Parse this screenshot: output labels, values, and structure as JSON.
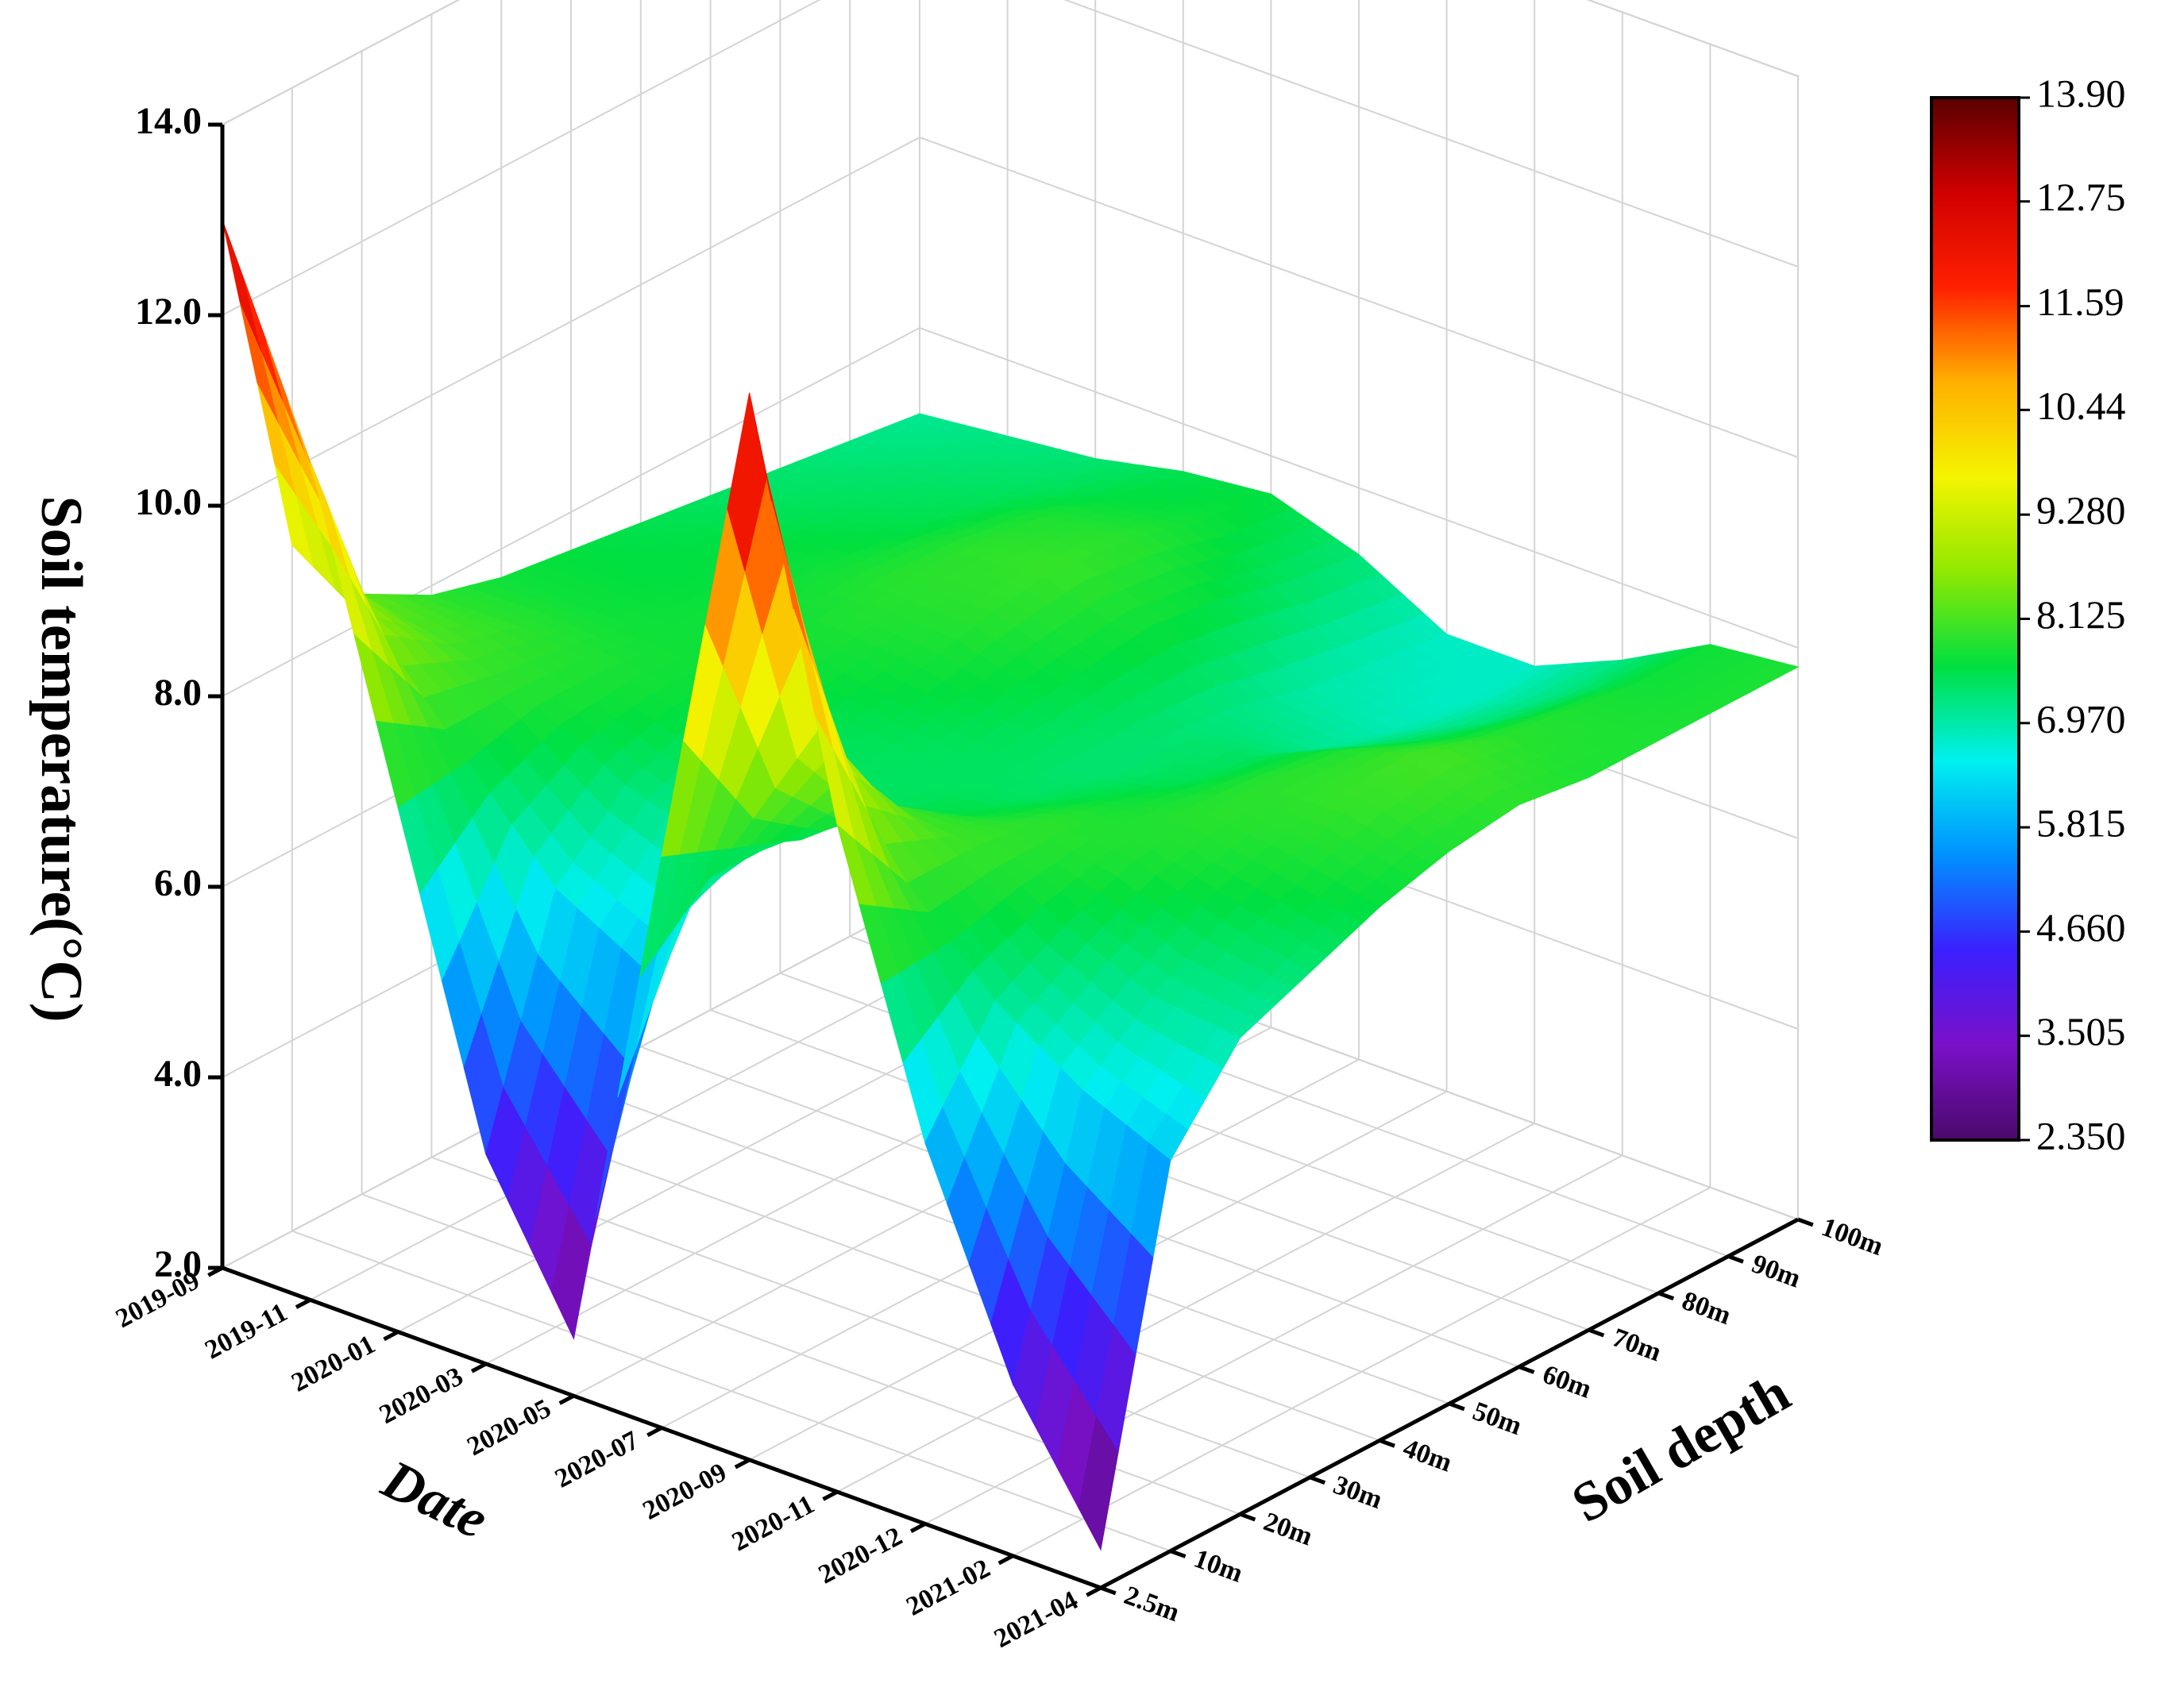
{
  "chart_data": {
    "type": "surface",
    "z_label": "Soil temperature(°C)",
    "x_label": "Date",
    "y_label": "Soil depth",
    "x_categories": [
      "2019-09",
      "2019-11",
      "2020-01",
      "2020-03",
      "2020-05",
      "2020-07",
      "2020-09",
      "2020-11",
      "2020-12",
      "2021-02",
      "2021-04"
    ],
    "y_categories": [
      "2.5m",
      "10m",
      "20m",
      "30m",
      "40m",
      "50m",
      "60m",
      "70m",
      "80m",
      "90m",
      "100m"
    ],
    "z": [
      [
        13.0,
        10.8,
        7.5,
        4.2,
        2.6,
        8.0,
        13.2,
        9.0,
        6.0,
        3.8,
        2.4
      ],
      [
        9.2,
        8.6,
        7.6,
        6.6,
        6.1,
        7.7,
        9.3,
        8.0,
        7.1,
        6.5,
        6.1
      ],
      [
        8.3,
        8.1,
        7.8,
        7.3,
        7.0,
        7.4,
        8.1,
        8.0,
        7.5,
        7.1,
        7.0
      ],
      [
        7.9,
        7.9,
        7.8,
        7.6,
        7.4,
        7.4,
        7.6,
        7.9,
        7.8,
        7.5,
        7.3
      ],
      [
        7.7,
        7.7,
        7.7,
        7.7,
        7.5,
        7.4,
        7.4,
        7.7,
        7.9,
        7.8,
        7.6
      ],
      [
        7.6,
        7.6,
        7.7,
        7.8,
        7.7,
        7.5,
        7.3,
        7.5,
        7.9,
        8.0,
        7.8
      ],
      [
        7.5,
        7.6,
        7.7,
        7.9,
        7.9,
        7.6,
        7.3,
        7.4,
        7.8,
        8.1,
        7.9
      ],
      [
        7.4,
        7.5,
        7.6,
        7.9,
        8.0,
        7.7,
        7.2,
        7.1,
        7.5,
        7.9,
        7.8
      ],
      [
        7.3,
        7.4,
        7.5,
        7.8,
        7.9,
        7.6,
        7.0,
        6.9,
        7.3,
        7.8,
        7.8
      ],
      [
        7.2,
        7.3,
        7.4,
        7.6,
        7.7,
        7.4,
        6.9,
        6.8,
        7.2,
        7.7,
        7.8
      ],
      [
        7.1,
        7.2,
        7.3,
        7.5,
        7.6,
        7.3,
        6.8,
        6.8,
        7.2,
        7.7,
        7.8
      ]
    ],
    "zlim": [
      2,
      14
    ],
    "zticks": [
      {
        "value": 2,
        "label": "2.0"
      },
      {
        "value": 4,
        "label": "4.0"
      },
      {
        "value": 6,
        "label": "6.0"
      },
      {
        "value": 8,
        "label": "8.0"
      },
      {
        "value": 10,
        "label": "10.0"
      },
      {
        "value": 12,
        "label": "12.0"
      },
      {
        "value": 14,
        "label": "14.0"
      }
    ],
    "grid": true,
    "colormap": [
      "#4a0a6a",
      "#7a10c8",
      "#3a20ff",
      "#0090ff",
      "#00f0f0",
      "#00e040",
      "#90e800",
      "#f4f400",
      "#ffb000",
      "#ff2000",
      "#d00000",
      "#5a0000"
    ],
    "colorbar": {
      "lim": [
        2.35,
        13.9
      ],
      "ticks": [
        {
          "value": 2.35,
          "label": "2.350"
        },
        3.505,
        {
          "value": 4.66,
          "label": "4.660"
        },
        5.815,
        {
          "value": 6.97,
          "label": "6.970"
        },
        8.125,
        {
          "value": 9.28,
          "label": "9.280"
        },
        10.44,
        11.59,
        12.75,
        {
          "value": 13.9,
          "label": "13.90"
        }
      ]
    }
  }
}
